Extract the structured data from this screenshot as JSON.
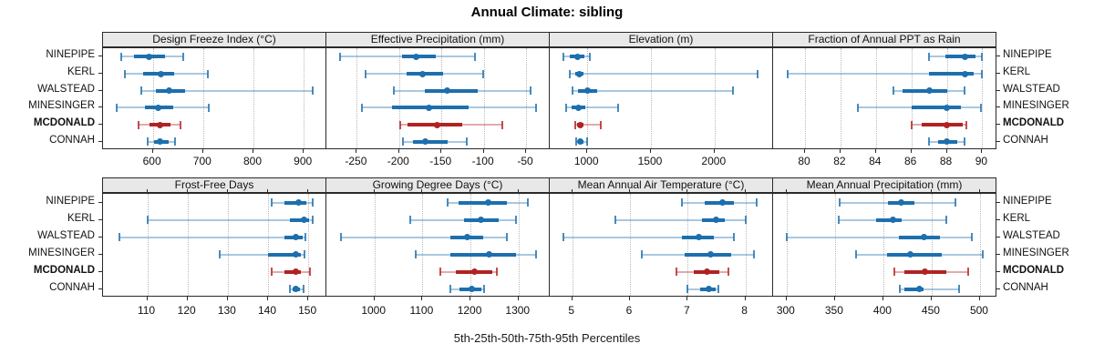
{
  "title": "Annual Climate: sibling",
  "caption": "5th-25th-50th-75th-95th Percentiles",
  "colors": {
    "series_normal": "#1d6fad",
    "series_highlight": "#b22222",
    "header_bg": "#e8e8e8",
    "panel_border": "#2a2a2a",
    "gridline": "#b9b9b9",
    "text": "#000000"
  },
  "chart_data": {
    "type": "dotplot",
    "subtype": "trellis-percentile-whiskers",
    "percentiles": [
      "5th",
      "25th",
      "50th",
      "75th",
      "95th"
    ],
    "sites": [
      "NINEPIPE",
      "KERL",
      "WALSTEAD",
      "MINESINGER",
      "MCDONALD",
      "CONNAH"
    ],
    "highlight_site": "MCDONALD",
    "layout": {
      "rows": 2,
      "cols": 4,
      "grid": "dotted",
      "legend": "none"
    },
    "panels": [
      {
        "title": "Design Freeze Index (°C)",
        "ticks": [
          600,
          700,
          800,
          900
        ],
        "xlim": [
          501,
          945
        ],
        "values": [
          [
            538,
            563,
            592,
            625,
            661
          ],
          [
            545,
            580,
            616,
            642,
            710
          ],
          [
            578,
            607,
            632,
            664,
            918
          ],
          [
            528,
            585,
            611,
            640,
            712
          ],
          [
            572,
            594,
            614,
            636,
            655
          ],
          [
            590,
            603,
            615,
            632,
            645
          ]
        ]
      },
      {
        "title": "Effective Precipitation (mm)",
        "ticks": [
          -250,
          -200,
          -150,
          -100,
          -50
        ],
        "xlim": [
          -286,
          -22
        ],
        "values": [
          [
            -270,
            -197,
            -180,
            -157,
            -110
          ],
          [
            -240,
            -191,
            -172,
            -148,
            -101
          ],
          [
            -206,
            -170,
            -143,
            -107,
            -45
          ],
          [
            -244,
            -208,
            -165,
            -118,
            -38
          ],
          [
            -199,
            -190,
            -155,
            -125,
            -78
          ],
          [
            -195,
            -184,
            -169,
            -143,
            -120
          ]
        ]
      },
      {
        "title": "Elevation (m)",
        "ticks": [
          1000,
          1500,
          2000
        ],
        "xlim": [
          705,
          2460
        ],
        "values": [
          [
            815,
            862,
            922,
            975,
            1017
          ],
          [
            865,
            905,
            940,
            970,
            2340
          ],
          [
            887,
            930,
            1000,
            1075,
            2145
          ],
          [
            835,
            875,
            929,
            985,
            1245
          ],
          [
            906,
            922,
            948,
            968,
            1103
          ],
          [
            911,
            930,
            946,
            968,
            1000
          ]
        ]
      },
      {
        "title": "Fraction of Annual PPT as Rain",
        "ticks": [
          80,
          82,
          84,
          86,
          88,
          90
        ],
        "xlim": [
          78.2,
          90.8
        ],
        "values": [
          [
            87,
            87.9,
            89,
            89.6,
            90
          ],
          [
            79,
            87,
            89,
            89.5,
            90
          ],
          [
            85,
            85.5,
            87,
            88,
            89
          ],
          [
            83,
            86,
            88,
            88.8,
            89.9
          ],
          [
            86,
            86.6,
            88,
            88.9,
            89.1
          ],
          [
            87,
            87.5,
            88,
            88.6,
            89
          ]
        ]
      },
      {
        "title": "Frost-Free Days",
        "ticks": [
          110,
          120,
          130,
          140,
          150
        ],
        "xlim": [
          99,
          154.5
        ],
        "values": [
          [
            141,
            144,
            147.5,
            149.5,
            151
          ],
          [
            110,
            145.5,
            149,
            150.2,
            151
          ],
          [
            103,
            144,
            147,
            148.6,
            149.2
          ],
          [
            128,
            140,
            146.8,
            148.2,
            149
          ],
          [
            141,
            144,
            146.8,
            148.2,
            150.4
          ],
          [
            145.5,
            146.2,
            147,
            148,
            148.8
          ]
        ]
      },
      {
        "title": "Growing Degree Days (°C)",
        "ticks": [
          1000,
          1100,
          1200,
          1300
        ],
        "xlim": [
          900,
          1365
        ],
        "values": [
          [
            1152,
            1176,
            1237,
            1276,
            1319
          ],
          [
            1074,
            1186,
            1221,
            1258,
            1295
          ],
          [
            930,
            1158,
            1194,
            1226,
            1276
          ],
          [
            1086,
            1158,
            1239,
            1294,
            1337
          ],
          [
            1137,
            1170,
            1208,
            1245,
            1255
          ],
          [
            1158,
            1178,
            1203,
            1222,
            1229
          ]
        ]
      },
      {
        "title": "Mean Annual Air Temperature (°C)",
        "ticks": [
          5,
          6,
          7,
          8
        ],
        "xlim": [
          4.61,
          8.48
        ],
        "values": [
          [
            6.9,
            7.3,
            7.6,
            7.8,
            8.2
          ],
          [
            5.75,
            7.25,
            7.5,
            7.65,
            8.0
          ],
          [
            4.85,
            6.9,
            7.2,
            7.45,
            7.8
          ],
          [
            6.2,
            6.95,
            7.4,
            7.75,
            8.15
          ],
          [
            6.8,
            7.1,
            7.33,
            7.55,
            7.7
          ],
          [
            7.0,
            7.22,
            7.37,
            7.48,
            7.53
          ]
        ]
      },
      {
        "title": "Mean Annual Precipitation (mm)",
        "ticks": [
          300,
          350,
          400,
          450,
          500
        ],
        "xlim": [
          286,
          517
        ],
        "values": [
          [
            355,
            405,
            418,
            432,
            475
          ],
          [
            354,
            393,
            410,
            419,
            465
          ],
          [
            300,
            416,
            442,
            459,
            492
          ],
          [
            372,
            404,
            428,
            460,
            503
          ],
          [
            411,
            422,
            443,
            465,
            488
          ],
          [
            417,
            422,
            437,
            442,
            478
          ]
        ]
      }
    ]
  }
}
